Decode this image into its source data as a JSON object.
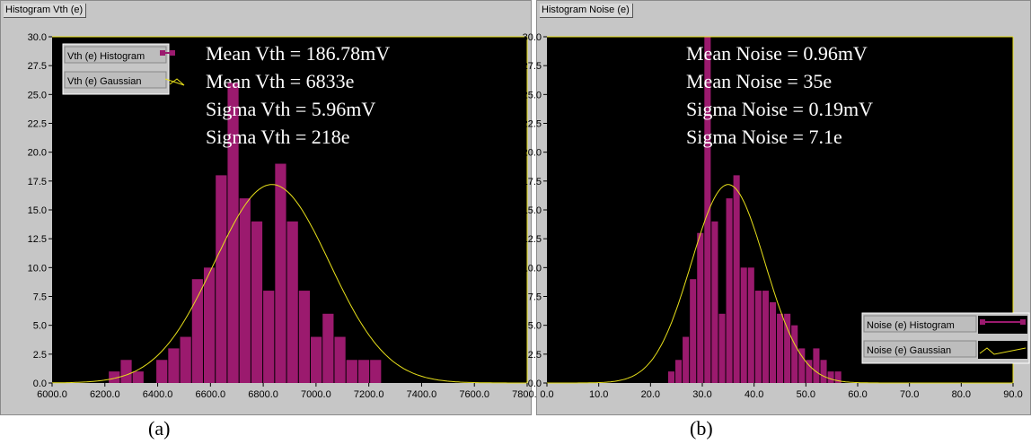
{
  "panels": [
    {
      "title": "Histogram Vth (e)",
      "caption": "(a)",
      "legend": {
        "histogram": "Vth (e) Histogram",
        "gaussian": "Vth (e) Gaussian"
      },
      "annotations": [
        "Mean Vth = 186.78mV",
        "Mean Vth = 6833e",
        "Sigma Vth = 5.96mV",
        "Sigma Vth = 218e"
      ]
    },
    {
      "title": "Histogram Noise (e)",
      "caption": "(b)",
      "legend": {
        "histogram": "Noise (e) Histogram",
        "gaussian": "Noise (e) Gaussian"
      },
      "annotations": [
        "Mean Noise = 0.96mV",
        "Mean Noise = 35e",
        "Sigma Noise = 0.19mV",
        "Sigma Noise = 7.1e"
      ]
    }
  ],
  "chart_data": [
    {
      "type": "bar",
      "xlim": [
        6000,
        7800
      ],
      "ylim": [
        0,
        30
      ],
      "yticks": [
        0.0,
        2.5,
        5.0,
        7.5,
        10.0,
        12.5,
        15.0,
        17.5,
        20.0,
        22.5,
        25.0,
        27.5,
        30.0
      ],
      "xticks": [
        "6000.0",
        "6200.0",
        "6400.0",
        "6600.0",
        "6800.0",
        "7000.0",
        "7200.0",
        "7400.0",
        "7600.0",
        "7800.0"
      ],
      "ytick_labels": [
        "0.0",
        "2.5",
        "5.0",
        "7.5",
        "10.0",
        "12.5",
        "15.0",
        "17.5",
        "20.0",
        "22.5",
        "25.0",
        "27.5",
        "30.0"
      ],
      "bin_width": 45,
      "bin_starts": [
        6215,
        6260,
        6305,
        6350,
        6395,
        6440,
        6485,
        6530,
        6575,
        6620,
        6665,
        6710,
        6755,
        6800,
        6845,
        6890,
        6935,
        6980,
        7025,
        7070,
        7115,
        7160,
        7205,
        7250,
        7295,
        7340,
        7385
      ],
      "values": [
        1,
        2,
        1,
        0,
        2,
        3,
        4,
        9,
        10,
        18,
        26,
        16,
        14,
        8,
        19,
        14,
        8,
        4,
        6,
        4,
        2,
        2,
        2,
        0,
        0,
        0,
        0
      ],
      "gaussian": {
        "mean": 6833,
        "sigma": 218,
        "peak": 17.2
      },
      "bar_color": "#9b1a6e",
      "curve_color": "#e8e01a",
      "legend_position": "top-left"
    },
    {
      "type": "bar",
      "xlim": [
        0,
        90
      ],
      "ylim": [
        0,
        30
      ],
      "yticks": [
        0.0,
        2.5,
        5.0,
        7.5,
        10.0,
        12.5,
        15.0,
        17.5,
        20.0,
        22.5,
        25.0,
        27.5,
        30.0
      ],
      "xticks": [
        "0.0",
        "10.0",
        "20.0",
        "30.0",
        "40.0",
        "50.0",
        "60.0",
        "70.0",
        "80.0",
        "90.0"
      ],
      "ytick_labels": [
        "0.0",
        "2.5",
        "5.0",
        "7.5",
        "10.0",
        "12.5",
        "15.0",
        "17.5",
        "20.0",
        "22.5",
        "25.0",
        "27.5",
        "30.0"
      ],
      "bin_width": 1.4,
      "bin_starts": [
        8,
        9.4,
        10.8,
        12.2,
        13.6,
        15,
        16.4,
        17.8,
        19.2,
        20.6,
        22,
        23.4,
        24.8,
        26.2,
        27.6,
        29,
        30.4,
        31.8,
        33.2,
        34.6,
        36,
        37.4,
        38.8,
        40.2,
        41.6,
        43,
        44.4,
        45.8,
        47.2,
        48.6,
        50,
        51.4,
        52.8,
        54.2,
        55.6,
        57,
        58.4,
        59.8,
        61.2,
        62.6
      ],
      "values": [
        0,
        0,
        0,
        0,
        0,
        0,
        0,
        0,
        0,
        0,
        0,
        1,
        2,
        4,
        9,
        13,
        30,
        14,
        6,
        16,
        18,
        10,
        10,
        8,
        8,
        7,
        6,
        6,
        5,
        3,
        2,
        3,
        2,
        1,
        1,
        0,
        0,
        0,
        0,
        0
      ],
      "gaussian": {
        "mean": 35,
        "sigma": 7.1,
        "peak": 17.2
      },
      "bar_color": "#9b1a6e",
      "curve_color": "#e8e01a",
      "legend_position": "bottom-right"
    }
  ]
}
